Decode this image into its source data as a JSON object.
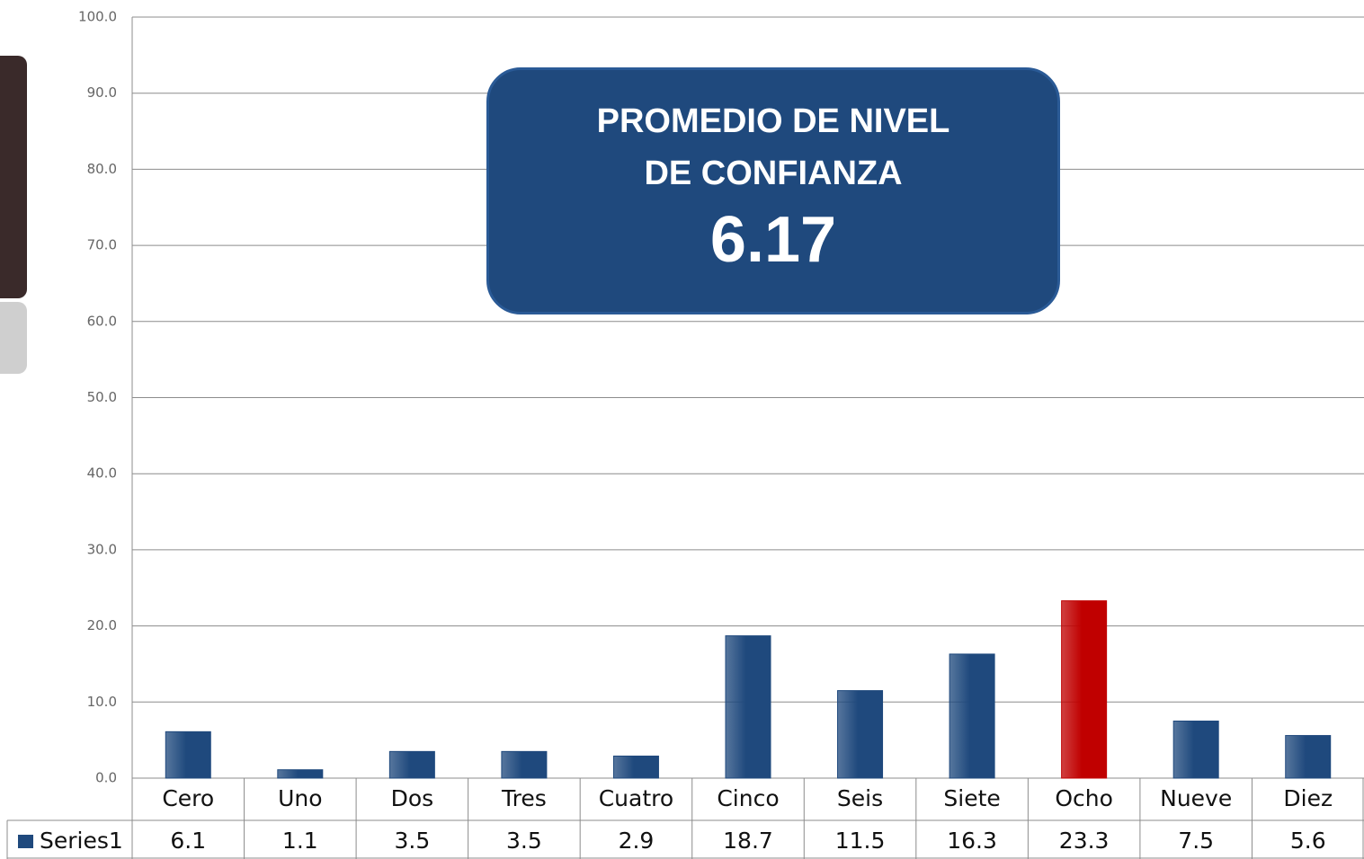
{
  "chart_data": {
    "type": "bar",
    "annotation": {
      "text": "PROMEDIO DE NIVEL DE CONFIANZA",
      "value": 6.17
    },
    "categories": [
      "Cero",
      "Uno",
      "Dos",
      "Tres",
      "Cuatro",
      "Cinco",
      "Seis",
      "Siete",
      "Ocho",
      "Nueve",
      "Diez"
    ],
    "series": [
      {
        "name": "Series1",
        "color": "#1f497d",
        "values": [
          6.1,
          1.1,
          3.5,
          3.5,
          2.9,
          18.7,
          11.5,
          16.3,
          23.3,
          7.5,
          5.6
        ],
        "colors": [
          "#1f497d",
          "#1f497d",
          "#1f497d",
          "#1f497d",
          "#1f497d",
          "#1f497d",
          "#1f497d",
          "#1f497d",
          "#c00000",
          "#1f497d",
          "#1f497d"
        ]
      }
    ],
    "ylim": [
      0,
      100
    ],
    "yticks": [
      {
        "value": 0,
        "label": "0.0"
      },
      {
        "value": 10,
        "label": "10.0"
      },
      {
        "value": 20,
        "label": "20.0"
      },
      {
        "value": 30,
        "label": "30.0"
      },
      {
        "value": 40,
        "label": "40.0"
      },
      {
        "value": 50,
        "label": "50.0"
      },
      {
        "value": 60,
        "label": "60.0"
      },
      {
        "value": 70,
        "label": "70.0"
      },
      {
        "value": 80,
        "label": "80.0"
      },
      {
        "value": 90,
        "label": "90.0"
      },
      {
        "value": 100,
        "label": "100.0"
      }
    ],
    "grid": true,
    "data_table": true
  }
}
